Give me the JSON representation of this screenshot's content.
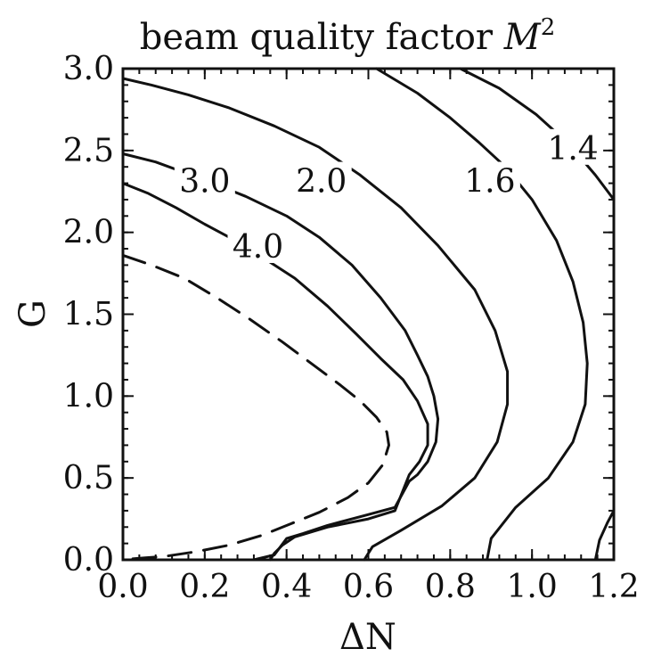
{
  "chart_data": {
    "type": "contour",
    "title_prefix": "beam quality factor ",
    "title_symbol": "M",
    "title_exponent": "2",
    "xlabel": "ΔN",
    "ylabel": "G",
    "xlim": [
      0.0,
      1.2
    ],
    "ylim": [
      0.0,
      3.0
    ],
    "xticks": [
      "0.0",
      "0.2",
      "0.4",
      "0.6",
      "0.8",
      "1.0",
      "1.2"
    ],
    "yticks": [
      "0.0",
      "0.5",
      "1.0",
      "1.5",
      "2.0",
      "2.5",
      "3.0"
    ],
    "series": [
      {
        "label": "1.4",
        "style": "solid",
        "points": [
          [
            0.825,
            3.0
          ],
          [
            0.92,
            2.88
          ],
          [
            1.01,
            2.72
          ],
          [
            1.09,
            2.54
          ],
          [
            1.155,
            2.35
          ],
          [
            1.2,
            2.2
          ]
        ],
        "segments": [
          [
            [
              1.155,
              0.0
            ],
            [
              1.165,
              0.12
            ],
            [
              1.185,
              0.23
            ],
            [
              1.2,
              0.3
            ]
          ]
        ],
        "label_pos": [
          1.1,
          2.5
        ]
      },
      {
        "label": "1.6",
        "style": "solid",
        "points": [
          [
            0.62,
            3.0
          ],
          [
            0.72,
            2.85
          ],
          [
            0.8,
            2.7
          ],
          [
            0.87,
            2.55
          ],
          [
            0.935,
            2.4
          ],
          [
            1.0,
            2.2
          ],
          [
            1.06,
            1.95
          ],
          [
            1.1,
            1.7
          ],
          [
            1.125,
            1.45
          ],
          [
            1.135,
            1.2
          ],
          [
            1.13,
            0.95
          ],
          [
            1.1,
            0.72
          ],
          [
            1.04,
            0.5
          ],
          [
            0.96,
            0.32
          ],
          [
            0.9,
            0.13
          ],
          [
            0.89,
            0.0
          ]
        ],
        "label_pos": [
          0.897,
          2.3
        ]
      },
      {
        "label": "2.0",
        "style": "solid",
        "points": [
          [
            0.0,
            2.94
          ],
          [
            0.07,
            2.9
          ],
          [
            0.16,
            2.84
          ],
          [
            0.26,
            2.76
          ],
          [
            0.37,
            2.65
          ],
          [
            0.48,
            2.52
          ],
          [
            0.58,
            2.35
          ],
          [
            0.68,
            2.15
          ],
          [
            0.77,
            1.92
          ],
          [
            0.86,
            1.65
          ],
          [
            0.91,
            1.4
          ],
          [
            0.94,
            1.15
          ],
          [
            0.94,
            0.95
          ],
          [
            0.915,
            0.72
          ],
          [
            0.86,
            0.5
          ],
          [
            0.78,
            0.33
          ],
          [
            0.68,
            0.18
          ],
          [
            0.61,
            0.08
          ],
          [
            0.59,
            0.0
          ]
        ],
        "label_pos": [
          0.485,
          2.3
        ]
      },
      {
        "label": "3.0",
        "style": "solid",
        "points": [
          [
            0.0,
            2.48
          ],
          [
            0.08,
            2.43
          ],
          [
            0.2,
            2.32
          ],
          [
            0.3,
            2.22
          ],
          [
            0.4,
            2.1
          ],
          [
            0.48,
            1.97
          ],
          [
            0.56,
            1.8
          ],
          [
            0.63,
            1.6
          ],
          [
            0.69,
            1.4
          ],
          [
            0.72,
            1.25
          ],
          [
            0.745,
            1.12
          ],
          [
            0.76,
            1.0
          ],
          [
            0.77,
            0.86
          ],
          [
            0.765,
            0.72
          ],
          [
            0.745,
            0.6
          ],
          [
            0.72,
            0.52
          ],
          [
            0.7,
            0.48
          ],
          [
            0.665,
            0.32
          ],
          [
            0.59,
            0.27
          ],
          [
            0.5,
            0.21
          ],
          [
            0.44,
            0.16
          ],
          [
            0.4,
            0.13
          ],
          [
            0.37,
            0.03
          ],
          [
            0.32,
            0.0
          ]
        ],
        "label_pos": [
          0.2,
          2.3
        ]
      },
      {
        "label": "4.0",
        "style": "solid",
        "points": [
          [
            0.0,
            2.3
          ],
          [
            0.06,
            2.24
          ],
          [
            0.13,
            2.15
          ],
          [
            0.2,
            2.05
          ],
          [
            0.26,
            1.97
          ],
          [
            0.34,
            1.85
          ],
          [
            0.42,
            1.72
          ],
          [
            0.5,
            1.55
          ],
          [
            0.57,
            1.38
          ],
          [
            0.63,
            1.23
          ],
          [
            0.685,
            1.1
          ],
          [
            0.72,
            0.97
          ],
          [
            0.745,
            0.83
          ],
          [
            0.745,
            0.7
          ],
          [
            0.725,
            0.6
          ],
          [
            0.7,
            0.52
          ],
          [
            0.665,
            0.3
          ],
          [
            0.6,
            0.25
          ],
          [
            0.5,
            0.2
          ],
          [
            0.42,
            0.14
          ],
          [
            0.39,
            0.09
          ],
          [
            0.37,
            0.04
          ],
          [
            0.36,
            0.0
          ]
        ],
        "label_pos": [
          0.33,
          1.9
        ]
      },
      {
        "label": "",
        "style": "dashed",
        "points": [
          [
            0.0,
            1.86
          ],
          [
            0.07,
            1.8
          ],
          [
            0.15,
            1.72
          ],
          [
            0.23,
            1.6
          ],
          [
            0.31,
            1.47
          ],
          [
            0.39,
            1.33
          ],
          [
            0.46,
            1.2
          ],
          [
            0.53,
            1.07
          ],
          [
            0.58,
            0.97
          ],
          [
            0.62,
            0.87
          ],
          [
            0.645,
            0.78
          ],
          [
            0.65,
            0.7
          ],
          [
            0.635,
            0.58
          ],
          [
            0.6,
            0.47
          ],
          [
            0.55,
            0.38
          ],
          [
            0.48,
            0.29
          ],
          [
            0.41,
            0.22
          ],
          [
            0.34,
            0.15
          ],
          [
            0.26,
            0.09
          ],
          [
            0.18,
            0.05
          ],
          [
            0.1,
            0.02
          ],
          [
            0.04,
            0.01
          ],
          [
            0.0,
            0.0
          ]
        ]
      }
    ],
    "base_segment": [
      [
        0.23,
        0.0
      ],
      [
        0.65,
        0.0
      ]
    ]
  }
}
